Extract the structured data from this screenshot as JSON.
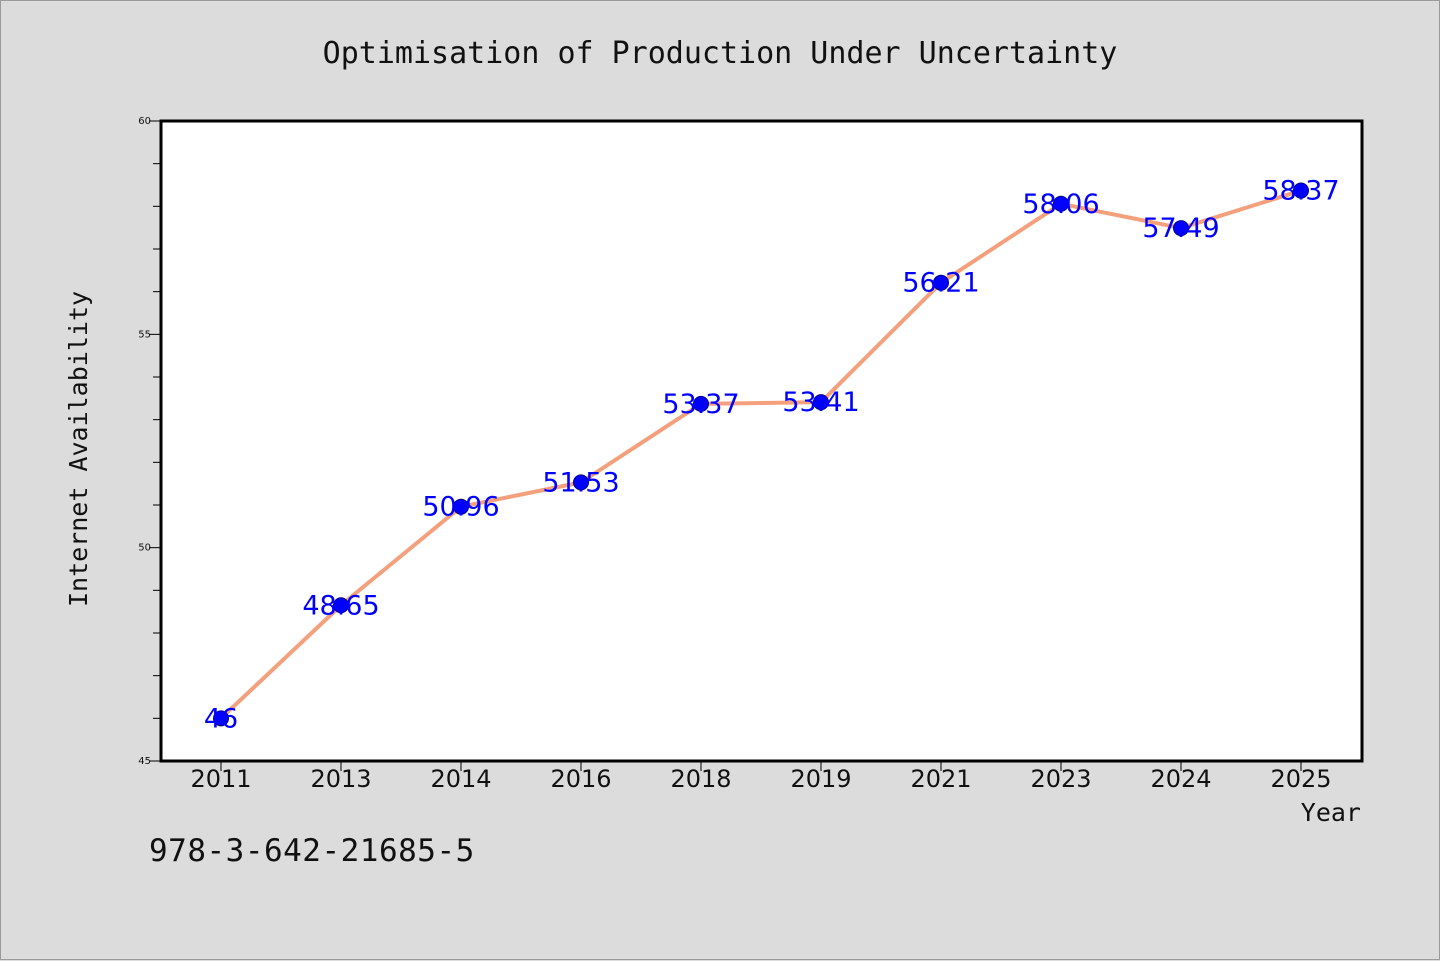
{
  "chart_data": {
    "type": "line",
    "title": "Optimisation of Production Under Uncertainty",
    "xlabel": "Year",
    "ylabel": "Internet Availability",
    "categories": [
      "2011",
      "2013",
      "2014",
      "2016",
      "2018",
      "2019",
      "2021",
      "2023",
      "2024",
      "2025"
    ],
    "series": [
      {
        "values": [
          46,
          48.65,
          50.96,
          51.53,
          53.37,
          53.41,
          56.21,
          58.06,
          57.49,
          58.37
        ],
        "labels": [
          "46",
          "48.65",
          "50.96",
          "51.53",
          "53.37",
          "53.41",
          "56.21",
          "58.06",
          "57.49",
          "58.37"
        ]
      }
    ],
    "ylim": [
      45,
      60
    ],
    "yticks": [
      "45",
      "50",
      "55",
      "60"
    ],
    "grid": false,
    "colors": {
      "line": "#f4a07c",
      "marker": "#0000ff",
      "label": "#0000ff",
      "background": "#dcdcdc",
      "plot_background": "#ffffff"
    }
  },
  "footer": {
    "isbn": "978-3-642-21685-5"
  }
}
